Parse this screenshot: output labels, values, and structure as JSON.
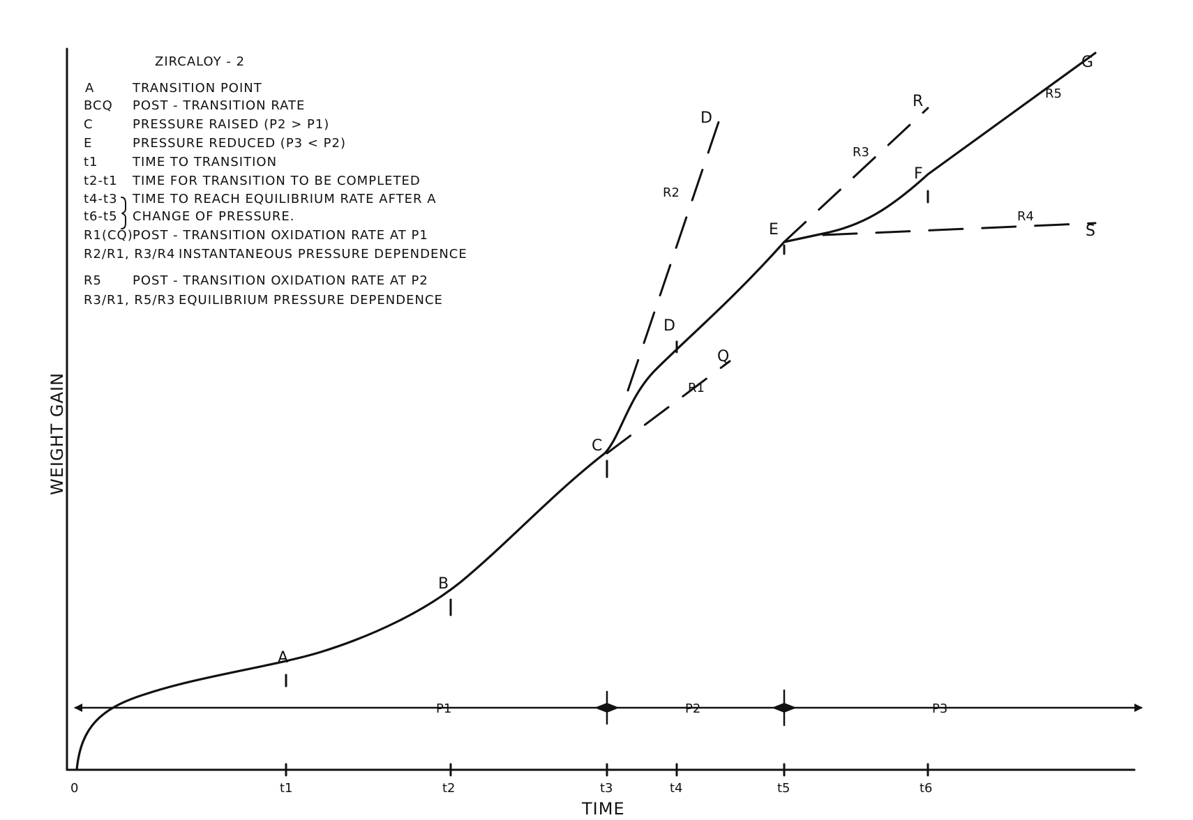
{
  "diagram": {
    "alloy": "ZIRCALOY - 2",
    "legend": [
      {
        "key": "A",
        "text": "TRANSITION POINT"
      },
      {
        "key": "BCQ",
        "text": "POST - TRANSITION RATE"
      },
      {
        "key": "C",
        "text": "PRESSURE RAISED (P2 > P1)"
      },
      {
        "key": "E",
        "text": "PRESSURE REDUCED (P3 < P2)"
      },
      {
        "key": "t1",
        "text": "TIME TO TRANSITION"
      },
      {
        "key": "t2-t1",
        "text": "TIME FOR TRANSITION TO BE COMPLETED"
      },
      {
        "key": "t4-t3",
        "text": "TIME TO REACH EQUILIBRIUM RATE AFTER A"
      },
      {
        "key": "t6-t5",
        "text": "CHANGE OF PRESSURE."
      },
      {
        "key": "R1(CQ)",
        "text": "POST - TRANSITION OXIDATION RATE AT P1"
      },
      {
        "key": "R2/R1, R3/R4",
        "text": "INSTANTANEOUS PRESSURE DEPENDENCE"
      },
      {
        "key": "R5",
        "text": "POST - TRANSITION OXIDATION RATE AT P2"
      },
      {
        "key": "R3/R1, R5/R3",
        "text": "EQUILIBRIUM PRESSURE DEPENDENCE"
      }
    ],
    "axes": {
      "y_label": "WEIGHT GAIN",
      "x_label": "TIME",
      "origin_label": "0",
      "time_ticks": [
        "t1",
        "t2",
        "t3",
        "t4",
        "t5",
        "t6"
      ]
    },
    "pressure_labels": [
      "P1",
      "P2",
      "P3"
    ],
    "point_labels": {
      "A": "A",
      "B": "B",
      "C": "C",
      "D": "D",
      "D_upper": "D",
      "E": "E",
      "F": "F",
      "G": "G",
      "Q": "Q",
      "R": "R",
      "S": "S",
      "R1": "R1",
      "R2": "R2",
      "R3": "R3",
      "R4": "R4",
      "R5": "R5"
    }
  }
}
